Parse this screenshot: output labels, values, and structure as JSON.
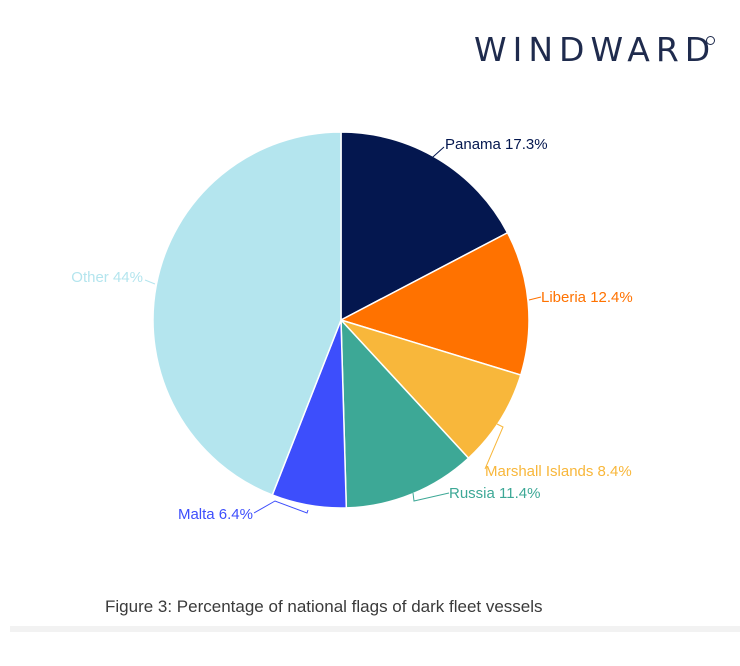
{
  "brand": {
    "logo_text": "WINDWARD"
  },
  "caption": "Figure 3: Percentage of national flags of dark fleet vessels",
  "chart_data": {
    "type": "pie",
    "title": "",
    "start_angle_deg": 0,
    "direction": "clockwise",
    "slices": [
      {
        "name": "Panama",
        "value": 17.3,
        "label": "Panama 17.3%",
        "color": "#04174f"
      },
      {
        "name": "Liberia",
        "value": 12.4,
        "label": "Liberia 12.4%",
        "color": "#ff7200"
      },
      {
        "name": "Marshall Islands",
        "value": 8.4,
        "label": "Marshall Islands 8.4%",
        "color": "#f8b73b"
      },
      {
        "name": "Russia",
        "value": 11.4,
        "label": "Russia 11.4%",
        "color": "#3da896"
      },
      {
        "name": "Malta",
        "value": 6.4,
        "label": "Malta 6.4%",
        "color": "#3d4efc"
      },
      {
        "name": "Other",
        "value": 44,
        "label": "Other 44%",
        "color": "#b4e5ee"
      }
    ]
  }
}
